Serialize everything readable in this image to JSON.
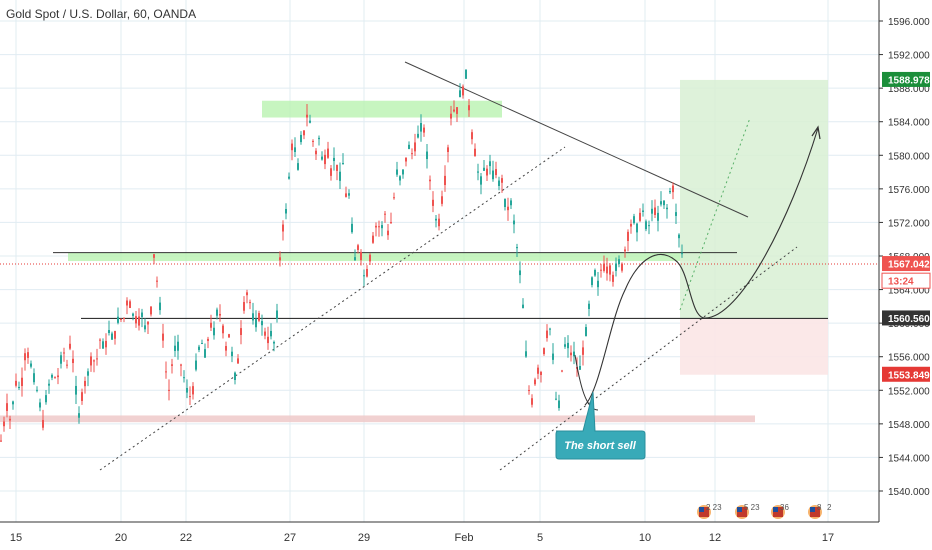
{
  "header": {
    "symbol_title": "Gold Spot / U.S. Dollar, 60, OANDA"
  },
  "colors": {
    "up": "#26a69a",
    "down": "#ef5350",
    "grid": "#e1ecf2",
    "zone_green": "#b9f2b0",
    "zone_red": "#efc9c9",
    "target_zone": "#d8f0d3",
    "stop_zone": "#fbe5e5",
    "callout": "#38aab8",
    "text": "#333333"
  },
  "chart_data": {
    "type": "candlestick",
    "y_axis": {
      "side": "right",
      "ylim": [
        1536,
        1598
      ],
      "ticks": [
        "1540.000",
        "1544.000",
        "1548.000",
        "1552.000",
        "1556.000",
        "1560.000",
        "1564.000",
        "1568.000",
        "1572.000",
        "1576.000",
        "1580.000",
        "1584.000",
        "1588.000",
        "1592.000",
        "1596.000"
      ]
    },
    "x_axis": {
      "tick_labels": [
        "15",
        "20",
        "22",
        "27",
        "29",
        "Feb",
        "5",
        "10",
        "12",
        "17"
      ]
    },
    "price_labels": [
      {
        "text": "1588.978",
        "value": 1588.978,
        "style": "target"
      },
      {
        "text": "1567.042",
        "value": 1567.042,
        "style": "last"
      },
      {
        "text": "13:24",
        "value": 1565.0,
        "style": "countdown"
      },
      {
        "text": "1560.560",
        "value": 1560.56,
        "style": "level"
      },
      {
        "text": "1553.849",
        "value": 1553.849,
        "style": "stop"
      }
    ],
    "price_path": [
      [
        0,
        1546
      ],
      [
        6,
        1550
      ],
      [
        10,
        1548
      ],
      [
        14,
        1553
      ],
      [
        20,
        1552
      ],
      [
        25,
        1557
      ],
      [
        30,
        1555
      ],
      [
        34,
        1553
      ],
      [
        38,
        1551
      ],
      [
        42,
        1548
      ],
      [
        46,
        1552
      ],
      [
        52,
        1554
      ],
      [
        56,
        1553
      ],
      [
        62,
        1557
      ],
      [
        66,
        1555
      ],
      [
        70,
        1558
      ],
      [
        74,
        1553
      ],
      [
        78,
        1549
      ],
      [
        82,
        1552
      ],
      [
        87,
        1554
      ],
      [
        91,
        1556
      ],
      [
        95,
        1555
      ],
      [
        99,
        1558
      ],
      [
        104,
        1557
      ],
      [
        108,
        1559
      ],
      [
        113,
        1558
      ],
      [
        118,
        1561
      ],
      [
        122,
        1560
      ],
      [
        127,
        1563
      ],
      [
        132,
        1561
      ],
      [
        137,
        1560
      ],
      [
        141,
        1561
      ],
      [
        145,
        1559
      ],
      [
        149,
        1561
      ],
      [
        151,
        1562
      ],
      [
        153,
        1568
      ],
      [
        155,
        1566
      ],
      [
        158,
        1563
      ],
      [
        161,
        1560
      ],
      [
        164,
        1555
      ],
      [
        168,
        1552
      ],
      [
        172,
        1556
      ],
      [
        176,
        1558
      ],
      [
        180,
        1555
      ],
      [
        184,
        1553
      ],
      [
        188,
        1551
      ],
      [
        192,
        1552
      ],
      [
        196,
        1556
      ],
      [
        200,
        1558
      ],
      [
        205,
        1556
      ],
      [
        209,
        1560
      ],
      [
        213,
        1559
      ],
      [
        217,
        1562
      ],
      [
        221,
        1560
      ],
      [
        225,
        1557
      ],
      [
        229,
        1559
      ],
      [
        232,
        1555
      ],
      [
        235,
        1553
      ],
      [
        239,
        1558
      ],
      [
        243,
        1562
      ],
      [
        247,
        1564
      ],
      [
        251,
        1561
      ],
      [
        255,
        1560
      ],
      [
        259,
        1561
      ],
      [
        263,
        1559
      ],
      [
        267,
        1558
      ],
      [
        271,
        1559
      ],
      [
        274,
        1557
      ],
      [
        277,
        1563
      ],
      [
        280,
        1570
      ],
      [
        283,
        1572
      ],
      [
        286,
        1574
      ],
      [
        289,
        1579
      ],
      [
        292,
        1582
      ],
      [
        295,
        1580
      ],
      [
        298,
        1578
      ],
      [
        301,
        1584
      ],
      [
        304,
        1582
      ],
      [
        307,
        1586
      ],
      [
        310,
        1583
      ],
      [
        313,
        1581
      ],
      [
        316,
        1580
      ],
      [
        319,
        1583
      ],
      [
        322,
        1578
      ],
      [
        326,
        1581
      ],
      [
        330,
        1578
      ],
      [
        334,
        1580
      ],
      [
        338,
        1577
      ],
      [
        342,
        1579
      ],
      [
        346,
        1574
      ],
      [
        349,
        1576
      ],
      [
        352,
        1569
      ],
      [
        355,
        1567
      ],
      [
        358,
        1570
      ],
      [
        361,
        1567
      ],
      [
        364,
        1565
      ],
      [
        368,
        1567
      ],
      [
        372,
        1570
      ],
      [
        376,
        1572
      ],
      [
        380,
        1571
      ],
      [
        384,
        1573
      ],
      [
        388,
        1570
      ],
      [
        392,
        1574
      ],
      [
        396,
        1578
      ],
      [
        400,
        1577
      ],
      [
        404,
        1579
      ],
      [
        408,
        1581
      ],
      [
        412,
        1580
      ],
      [
        416,
        1582
      ],
      [
        419,
        1583
      ],
      [
        422,
        1584
      ],
      [
        425,
        1581
      ],
      [
        428,
        1578
      ],
      [
        431,
        1575
      ],
      [
        434,
        1573
      ],
      [
        437,
        1571
      ],
      [
        440,
        1574
      ],
      [
        443,
        1576
      ],
      [
        446,
        1579
      ],
      [
        449,
        1584
      ],
      [
        452,
        1586
      ],
      [
        455,
        1584
      ],
      [
        458,
        1588
      ],
      [
        461,
        1586
      ],
      [
        464,
        1591
      ],
      [
        467,
        1587
      ],
      [
        470,
        1583
      ],
      [
        473,
        1581
      ],
      [
        476,
        1579
      ],
      [
        479,
        1576
      ],
      [
        482,
        1579
      ],
      [
        485,
        1577
      ],
      [
        488,
        1580
      ],
      [
        491,
        1577
      ],
      [
        494,
        1579
      ],
      [
        497,
        1576
      ],
      [
        500,
        1578
      ],
      [
        503,
        1575
      ],
      [
        506,
        1573
      ],
      [
        509,
        1575
      ],
      [
        512,
        1573
      ],
      [
        515,
        1570
      ],
      [
        518,
        1567
      ],
      [
        521,
        1564
      ],
      [
        524,
        1558
      ],
      [
        527,
        1553
      ],
      [
        530,
        1550
      ],
      [
        533,
        1552
      ],
      [
        536,
        1555
      ],
      [
        539,
        1553
      ],
      [
        542,
        1556
      ],
      [
        545,
        1558
      ],
      [
        548,
        1560
      ],
      [
        551,
        1558
      ],
      [
        554,
        1552
      ],
      [
        557,
        1549
      ],
      [
        560,
        1553
      ],
      [
        563,
        1557
      ],
      [
        566,
        1558
      ],
      [
        569,
        1556
      ],
      [
        572,
        1557
      ],
      [
        575,
        1555
      ],
      [
        578,
        1554
      ],
      [
        581,
        1556
      ],
      [
        584,
        1558
      ],
      [
        587,
        1561
      ],
      [
        590,
        1564
      ],
      [
        593,
        1567
      ],
      [
        596,
        1564
      ],
      [
        599,
        1566
      ],
      [
        602,
        1567
      ],
      [
        605,
        1566
      ],
      [
        608,
        1567
      ],
      [
        611,
        1565
      ],
      [
        614,
        1566
      ],
      [
        617,
        1568
      ],
      [
        620,
        1566
      ],
      [
        623,
        1568
      ],
      [
        626,
        1570
      ],
      [
        629,
        1571
      ],
      [
        632,
        1573
      ],
      [
        635,
        1571
      ],
      [
        638,
        1572
      ],
      [
        641,
        1574
      ],
      [
        644,
        1572
      ],
      [
        647,
        1571
      ],
      [
        650,
        1573
      ],
      [
        653,
        1574
      ],
      [
        656,
        1572
      ],
      [
        659,
        1574
      ],
      [
        662,
        1575
      ],
      [
        665,
        1573
      ],
      [
        668,
        1575
      ],
      [
        671,
        1577
      ],
      [
        674,
        1574
      ],
      [
        677,
        1571
      ],
      [
        680,
        1569
      ],
      [
        683,
        1567
      ]
    ],
    "horizontal_lines": [
      {
        "name": "resistance-level",
        "value": 1568.4
      },
      {
        "name": "support-level",
        "value": 1560.56
      }
    ],
    "zones": [
      {
        "name": "top-supply-zone",
        "from": 1584.5,
        "to": 1586.5,
        "kind": "green"
      },
      {
        "name": "middle-support-zone",
        "from": 1567.4,
        "to": 1568.4,
        "kind": "green"
      },
      {
        "name": "bottom-demand-zone",
        "from": 1548.2,
        "to": 1549.0,
        "kind": "red"
      }
    ],
    "position": {
      "entry": 1560.56,
      "target": 1588.978,
      "stop": 1553.849
    },
    "annotations": {
      "callout_text": "The short sell"
    }
  },
  "footer_icons": [
    {
      "name": "us-flag-event-icon",
      "label": "2 23"
    },
    {
      "name": "us-flag-event-icon",
      "label": "5 23"
    },
    {
      "name": "us-flag-event-icon",
      "label": "36"
    },
    {
      "name": "us-flag-event-icon",
      "label": "8"
    },
    {
      "name": "event-count",
      "label": "2"
    }
  ]
}
